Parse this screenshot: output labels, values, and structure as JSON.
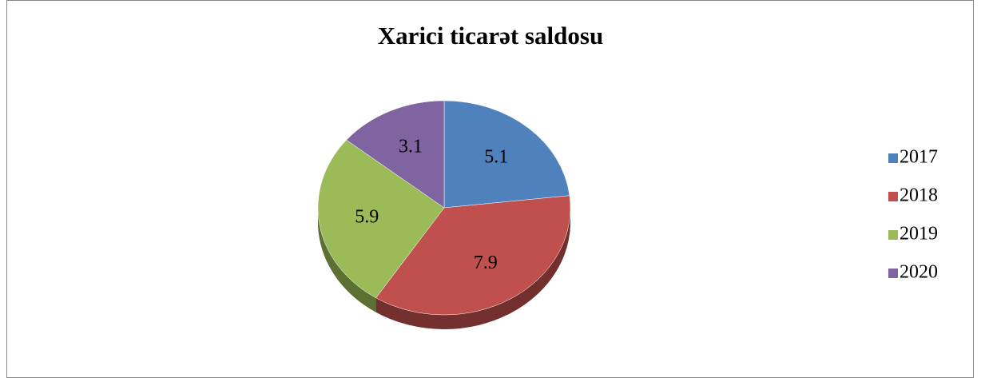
{
  "chart_data": {
    "type": "pie",
    "title": "Xarici ticarət saldosu",
    "categories": [
      "2017",
      "2018",
      "2019",
      "2020"
    ],
    "values": [
      5.1,
      7.9,
      5.9,
      3.1
    ],
    "colors": [
      "#4f81bd",
      "#c0504d",
      "#9bbb59",
      "#8064a2"
    ],
    "legend": "right"
  }
}
